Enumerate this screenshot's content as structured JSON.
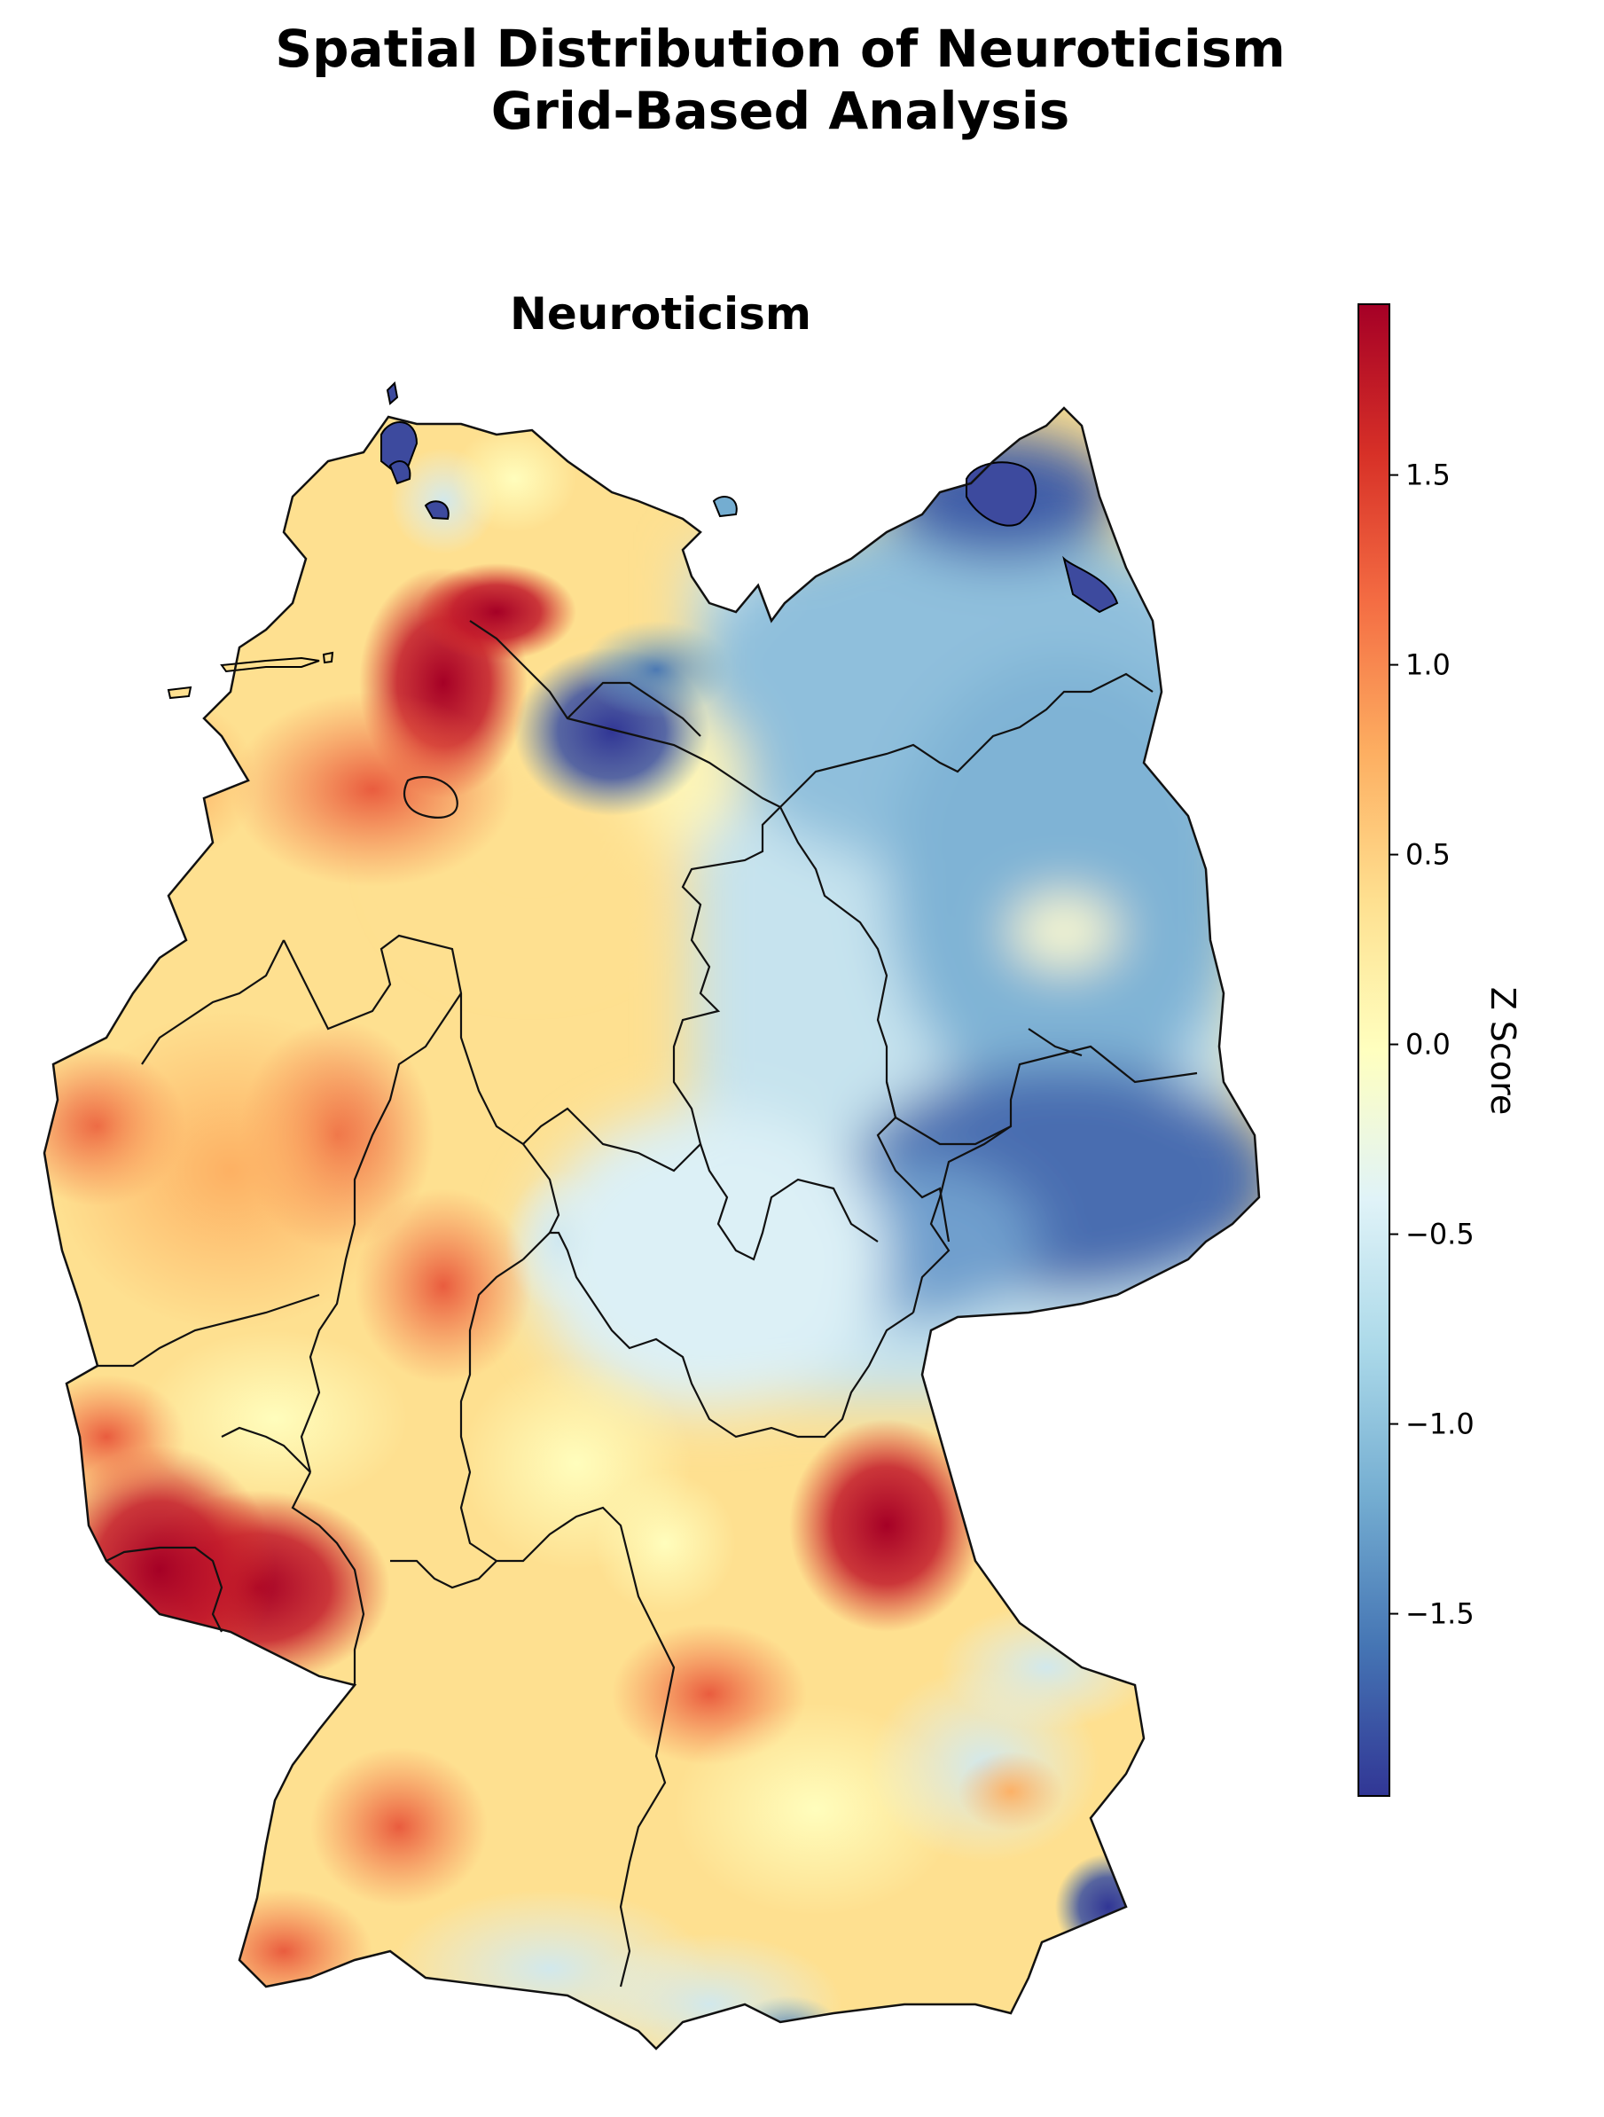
{
  "figure": {
    "title_line1": "Spatial Distribution of Neuroticism",
    "title_line2": "Grid-Based Analysis"
  },
  "map": {
    "subtitle": "Neuroticism",
    "colormap": "RdYlBu_r",
    "color_stops": [
      "#313695",
      "#4575b4",
      "#74add1",
      "#abd9e9",
      "#e0f3f8",
      "#ffffbf",
      "#fee090",
      "#fdae61",
      "#f46d43",
      "#d73027",
      "#a50026"
    ],
    "border_color": "#000000"
  },
  "colorbar": {
    "label": "Z Score",
    "range": [
      -1.98,
      1.95
    ],
    "ticks": [
      {
        "value": 1.5,
        "label": "1.5"
      },
      {
        "value": 1.0,
        "label": "1.0"
      },
      {
        "value": 0.5,
        "label": "0.5"
      },
      {
        "value": 0.0,
        "label": "0.0"
      },
      {
        "value": -0.5,
        "label": "−0.5"
      },
      {
        "value": -1.0,
        "label": "−1.0"
      },
      {
        "value": -1.5,
        "label": "−1.5"
      }
    ]
  }
}
